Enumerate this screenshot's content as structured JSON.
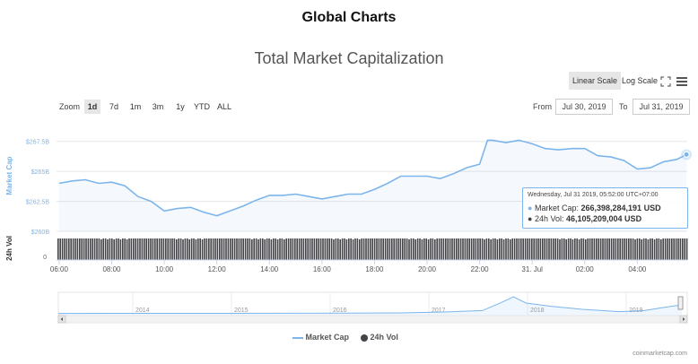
{
  "page": {
    "title": "Global Charts",
    "credit": "coinmarketcap.com"
  },
  "chart_header": {
    "title": "Total Market Capitalization"
  },
  "scale_buttons": {
    "linear": "Linear Scale",
    "log": "Log Scale"
  },
  "zoom": {
    "label": "Zoom",
    "options": [
      "1d",
      "7d",
      "1m",
      "3m",
      "1y",
      "YTD",
      "ALL"
    ],
    "active": "1d"
  },
  "range": {
    "from_label": "From",
    "from_value": "Jul 30, 2019",
    "to_label": "To",
    "to_value": "Jul 31, 2019"
  },
  "tooltip": {
    "header": "Wednesday, Jul 31 2019, 05:52:00 UTC+07:00",
    "mcap_label": "Market Cap:",
    "mcap_value": "266,398,284,191 USD",
    "vol_label": "24h Vol:",
    "vol_value": "46,105,209,004 USD"
  },
  "colors": {
    "mcap": "#7cb5ec",
    "volume": "#434348",
    "navigator": "#7cb5ec"
  },
  "chart_data": {
    "type": "line",
    "title": "Total Market Capitalization",
    "ylabel": "Market Cap",
    "y2label": "24h Vol",
    "y_ticks": [
      "$267.5B",
      "$265B",
      "$262.5B",
      "$260B"
    ],
    "y_tick_values": [
      267.5,
      265,
      262.5,
      260
    ],
    "ylim": [
      260,
      268.3
    ],
    "x_ticks": [
      "06:00",
      "08:00",
      "10:00",
      "12:00",
      "14:00",
      "16:00",
      "18:00",
      "20:00",
      "22:00",
      "31. Jul",
      "02:00",
      "04:00"
    ],
    "x_tick_hours": [
      6,
      8,
      10,
      12,
      14,
      16,
      18,
      20,
      22,
      24,
      26,
      28
    ],
    "xlim_hours": [
      5.9,
      29.9
    ],
    "series": [
      {
        "name": "Market Cap",
        "unit": "B USD",
        "x_hours": [
          6.0,
          6.5,
          7.0,
          7.5,
          8.0,
          8.5,
          9.0,
          9.5,
          10.0,
          10.5,
          11.0,
          11.5,
          12.0,
          12.5,
          13.0,
          13.5,
          14.0,
          14.5,
          15.0,
          15.5,
          16.0,
          16.5,
          17.0,
          17.5,
          18.0,
          18.5,
          19.0,
          19.5,
          20.0,
          20.5,
          21.0,
          21.5,
          22.0,
          22.3,
          22.5,
          23.0,
          23.5,
          24.0,
          24.5,
          25.0,
          25.5,
          26.0,
          26.5,
          27.0,
          27.5,
          28.0,
          28.5,
          29.0,
          29.5,
          29.87
        ],
        "values": [
          264.0,
          264.2,
          264.3,
          264.0,
          264.1,
          263.8,
          262.9,
          262.5,
          261.7,
          261.9,
          262.0,
          261.6,
          261.3,
          261.7,
          262.1,
          262.6,
          263.0,
          263.0,
          263.1,
          262.9,
          262.7,
          262.9,
          263.1,
          263.1,
          263.5,
          264.0,
          264.6,
          264.6,
          264.6,
          264.4,
          264.8,
          265.3,
          265.6,
          267.6,
          267.6,
          267.4,
          267.6,
          267.3,
          266.9,
          266.8,
          266.9,
          266.9,
          266.3,
          266.2,
          265.9,
          265.2,
          265.3,
          265.8,
          266.0,
          266.4
        ]
      },
      {
        "name": "24h Vol",
        "unit": "B USD",
        "note": "shown as dense bars of near-uniform height"
      }
    ],
    "navigator": {
      "x_ticks": [
        "2014",
        "2015",
        "2016",
        "2017",
        "2018",
        "2019"
      ]
    }
  },
  "legend": {
    "mcap": "Market Cap",
    "vol": "24h Vol"
  }
}
